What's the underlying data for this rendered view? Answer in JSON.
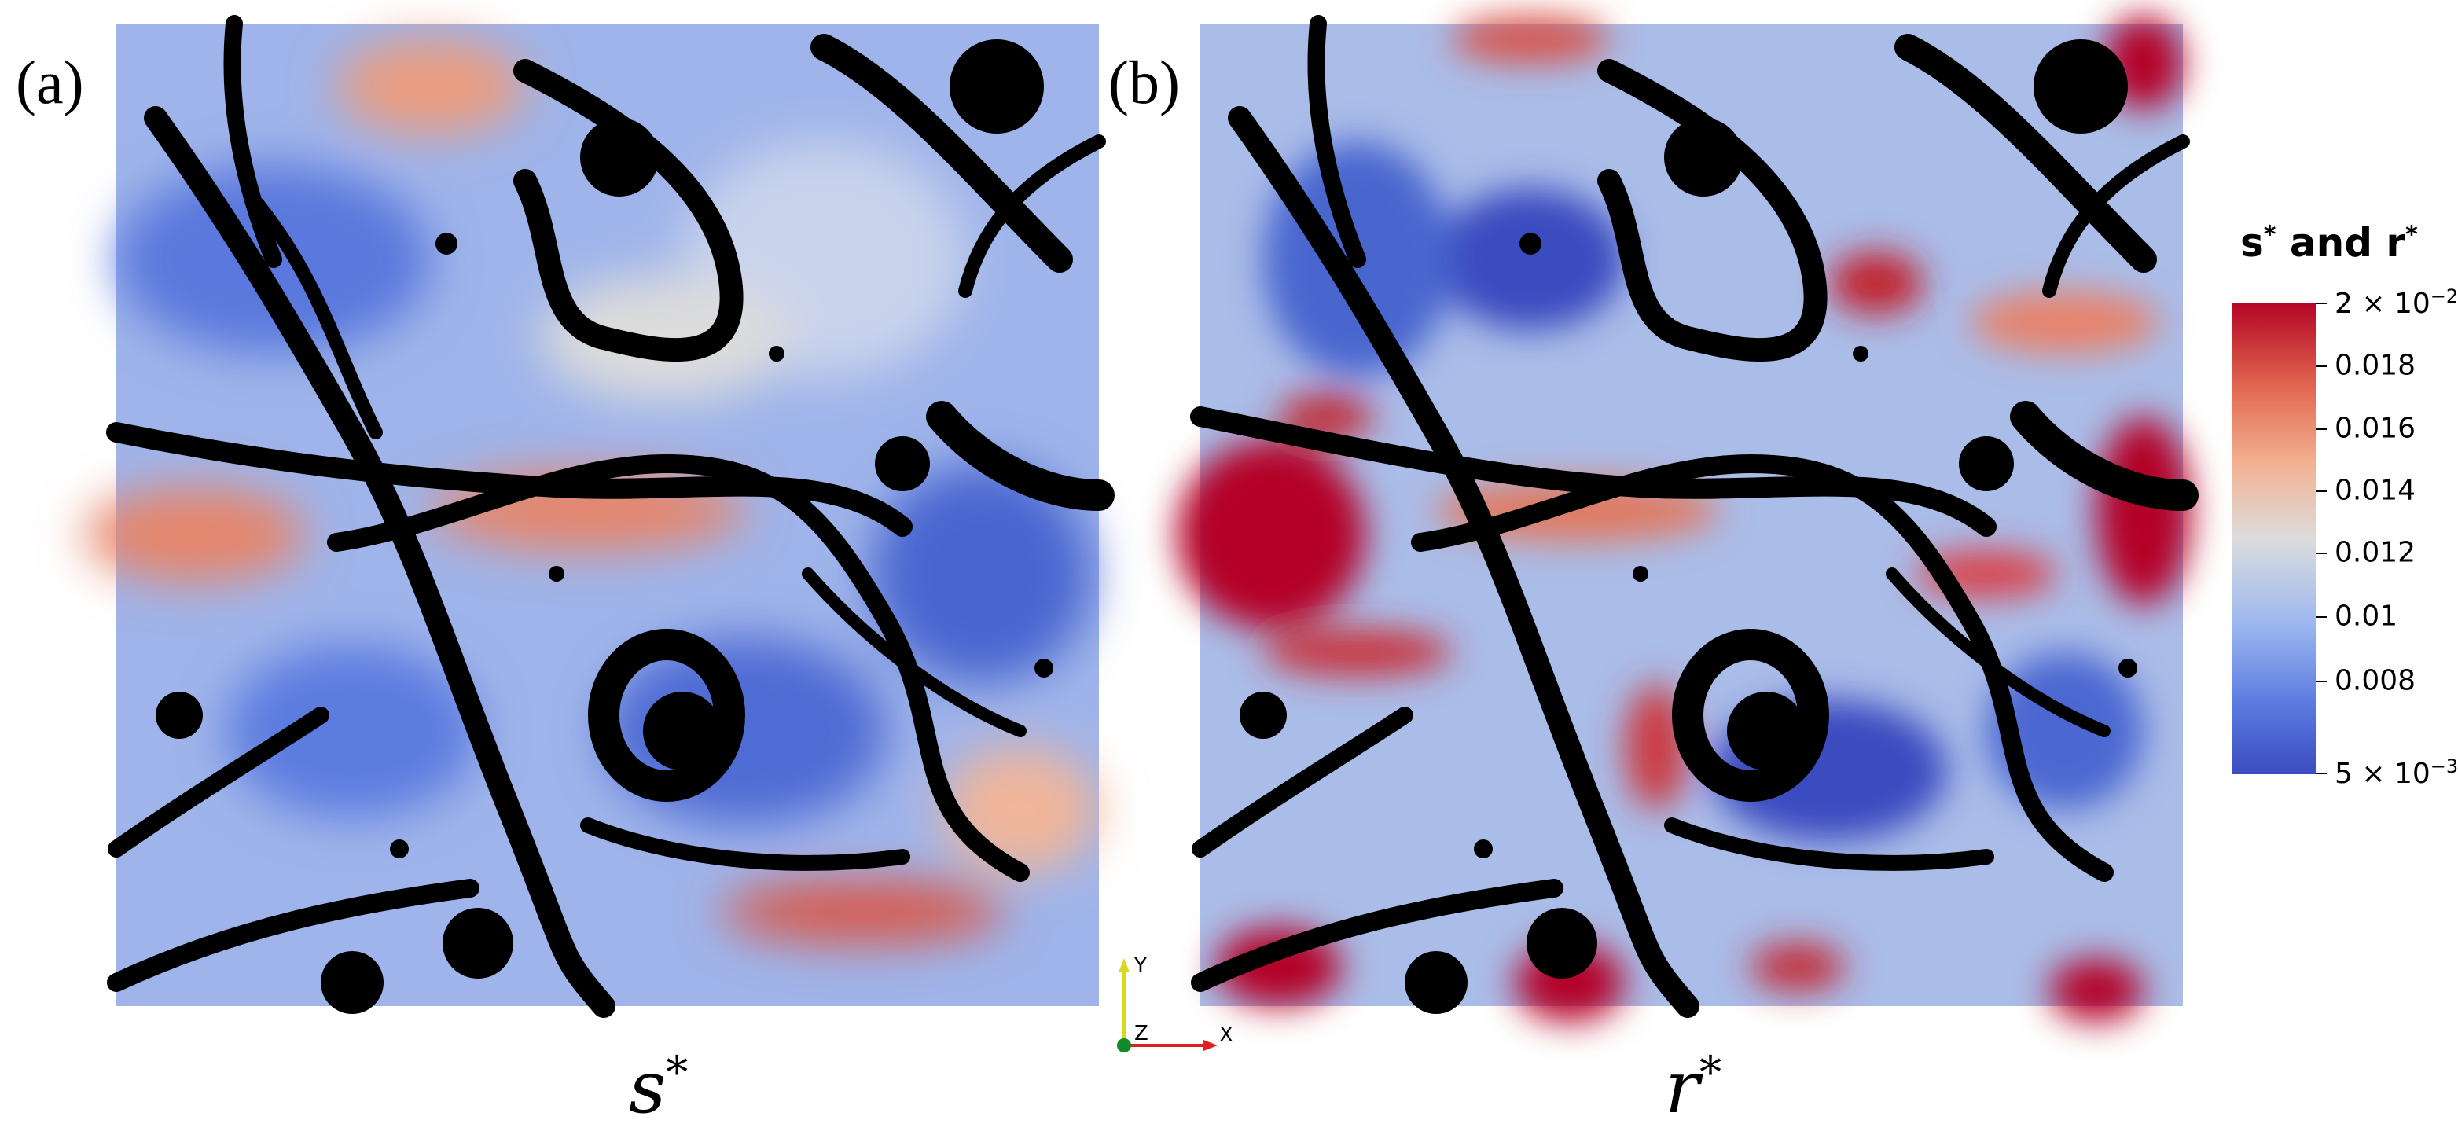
{
  "panels": [
    {
      "label": "(a)",
      "caption_var": "s",
      "caption_sup": "*"
    },
    {
      "label": "(b)",
      "caption_var": "r",
      "caption_sup": "*"
    }
  ],
  "colorbar": {
    "title": "s* and r*",
    "title_base": "s",
    "title_mid": " and r",
    "title_sup": "*",
    "max_label": "2 × 10",
    "max_exp": "−2",
    "ticks": [
      "0.018",
      "0.016",
      "0.014",
      "0.012",
      "0.01",
      "0.008"
    ],
    "min_label": "5 × 10",
    "min_exp": "−3",
    "colors": {
      "low": "#3b4cc0",
      "mid": "#dcdcdc",
      "high": "#b40426"
    }
  },
  "axes_icon": {
    "y": "Y",
    "z": "Z",
    "x": "X"
  }
}
